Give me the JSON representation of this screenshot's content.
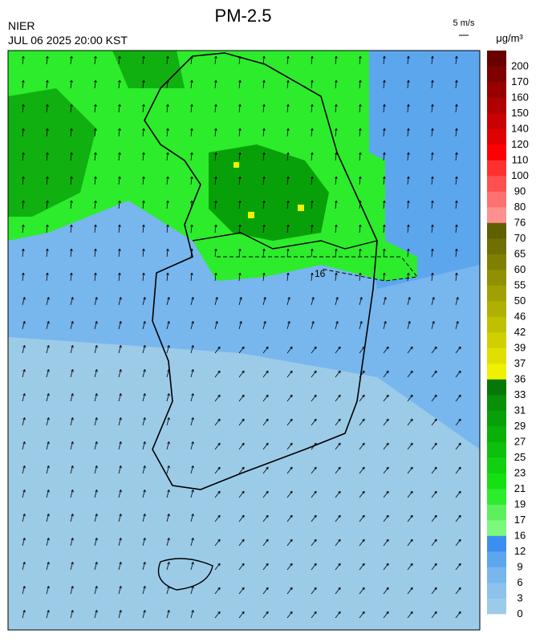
{
  "header": {
    "title": "PM-2.5",
    "source": "NIER",
    "datetime": "JUL 06 2025 20:00 KST",
    "wind_scale": "5 m/s",
    "unit": "μg/m³"
  },
  "map": {
    "contour_label": "16"
  },
  "colorbar": {
    "levels": [
      0,
      3,
      6,
      9,
      12,
      16,
      17,
      19,
      21,
      23,
      25,
      27,
      29,
      31,
      33,
      36,
      37,
      39,
      42,
      46,
      50,
      55,
      60,
      65,
      70,
      76,
      80,
      90,
      100,
      110,
      120,
      140,
      150,
      160,
      170,
      200
    ],
    "colors": [
      "#9ccbe8",
      "#8cc2ec",
      "#78b6ee",
      "#5ca6ee",
      "#3c8ff0",
      "#7cf87c",
      "#5cf05c",
      "#2cec2c",
      "#14e014",
      "#10d010",
      "#0cc00c",
      "#08b008",
      "#08a008",
      "#089008",
      "#067806",
      "#f0f000",
      "#e0e000",
      "#d0d000",
      "#c0c000",
      "#b0b000",
      "#a0a000",
      "#909000",
      "#808000",
      "#707000",
      "#606000",
      "#ff9090",
      "#ff7070",
      "#ff5050",
      "#ff3030",
      "#ff0000",
      "#e00000",
      "#c80000",
      "#b00000",
      "#980000",
      "#800000",
      "#680000"
    ]
  }
}
